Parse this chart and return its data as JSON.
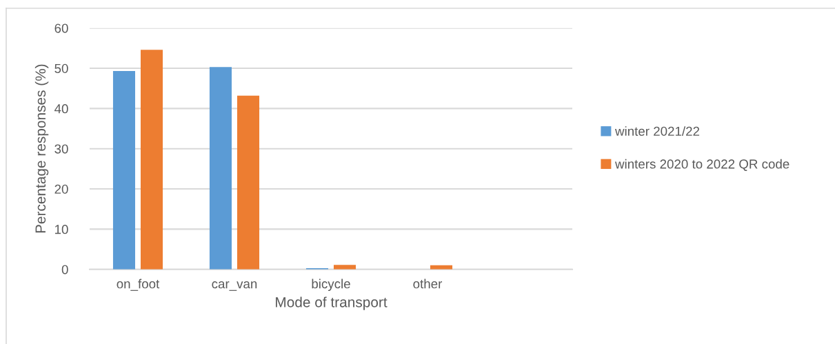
{
  "chart_data": {
    "type": "bar",
    "xlabel": "Mode of transport",
    "ylabel": "Percentage responses (%)",
    "categories": [
      "on_foot",
      "car_van",
      "bicycle",
      "other",
      null
    ],
    "series": [
      {
        "name": "winter 2021/22",
        "color": "#5b9bd5",
        "values": [
          49.3,
          50.3,
          0.3,
          null,
          null
        ]
      },
      {
        "name": "winters 2020 to 2022 QR code",
        "color": "#ed7d31",
        "values": [
          54.6,
          43.2,
          1.1,
          1.0,
          null
        ]
      }
    ],
    "ylim": [
      0,
      60
    ],
    "yticks": [
      0,
      10,
      20,
      30,
      40,
      50,
      60
    ],
    "grid": "y",
    "legend": "right"
  }
}
